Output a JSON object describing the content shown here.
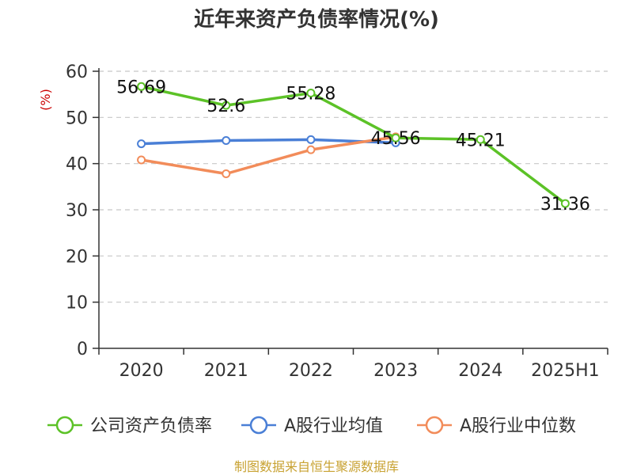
{
  "chart_data": {
    "type": "line",
    "title": "近年来资产负债率情况(%)",
    "ylabel": "(%)",
    "categories": [
      "2020",
      "2021",
      "2022",
      "2023",
      "2024",
      "2025H1"
    ],
    "ylim": [
      0,
      60
    ],
    "yticks": [
      "0",
      "10",
      "20",
      "30",
      "40",
      "50",
      "60"
    ],
    "grid": true,
    "legend_position": "bottom",
    "series": [
      {
        "name": "公司资产负债率",
        "color": "#5cc227",
        "values": [
          56.69,
          52.6,
          55.28,
          45.56,
          45.21,
          31.36
        ],
        "labels": [
          "56.69",
          "52.6",
          "55.28",
          "45.56",
          "45.21",
          "31.36"
        ]
      },
      {
        "name": "A股行业均值",
        "color": "#4a7fd6",
        "values": [
          44.3,
          45.0,
          45.2,
          44.5,
          null,
          null
        ]
      },
      {
        "name": "A股行业中位数",
        "color": "#f28c5a",
        "values": [
          40.8,
          37.8,
          43.0,
          45.8,
          null,
          null
        ]
      }
    ],
    "source": "制图数据来自恒生聚源数据库"
  }
}
